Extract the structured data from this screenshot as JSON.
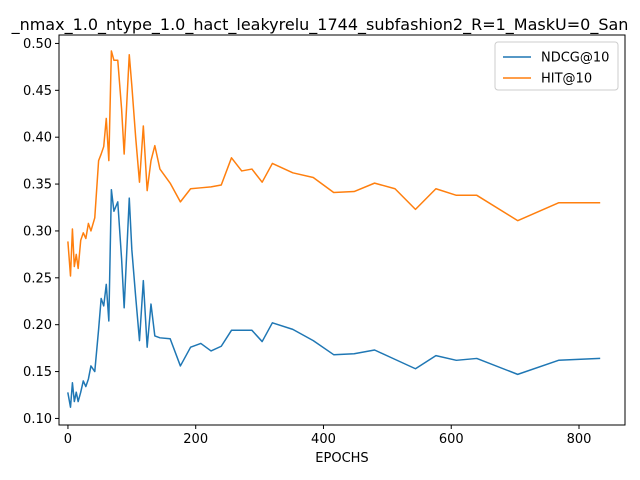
{
  "chart_data": {
    "type": "line",
    "title": "_nmax_1.0_ntype_1.0_hact_leakyrelu_1744_subfashion2_R=1_MaskU=0_San",
    "xlabel": "EPOCHS",
    "ylabel": "",
    "xlim": [
      -14,
      872
    ],
    "ylim": [
      0.093,
      0.509
    ],
    "xticks": [
      0,
      200,
      400,
      600,
      800
    ],
    "yticks": [
      0.1,
      0.15,
      0.2,
      0.25,
      0.3,
      0.35,
      0.4,
      0.45,
      0.5
    ],
    "xtick_labels": [
      "0",
      "200",
      "400",
      "600",
      "800"
    ],
    "ytick_labels": [
      "0.10",
      "0.15",
      "0.20",
      "0.25",
      "0.30",
      "0.35",
      "0.40",
      "0.45",
      "0.50"
    ],
    "grid": false,
    "legend_position": "top-right",
    "series": [
      {
        "name": "NDCG@10",
        "color": "#1f77b4",
        "x": [
          0,
          4,
          7,
          10,
          13,
          16,
          20,
          24,
          28,
          32,
          36,
          42,
          48,
          52,
          56,
          60,
          64,
          68,
          72,
          78,
          84,
          88,
          96,
          100,
          106,
          112,
          118,
          124,
          130,
          136,
          144,
          160,
          176,
          192,
          208,
          224,
          240,
          256,
          272,
          288,
          304,
          320,
          352,
          384,
          416,
          448,
          480,
          512,
          544,
          576,
          608,
          640,
          704,
          768,
          832
        ],
        "y": [
          0.127,
          0.112,
          0.138,
          0.118,
          0.128,
          0.118,
          0.128,
          0.14,
          0.134,
          0.142,
          0.156,
          0.15,
          0.195,
          0.228,
          0.22,
          0.243,
          0.204,
          0.344,
          0.321,
          0.331,
          0.27,
          0.218,
          0.335,
          0.28,
          0.23,
          0.183,
          0.247,
          0.176,
          0.222,
          0.188,
          0.186,
          0.185,
          0.156,
          0.176,
          0.18,
          0.172,
          0.177,
          0.194,
          0.194,
          0.194,
          0.182,
          0.202,
          0.195,
          0.183,
          0.168,
          0.169,
          0.173,
          0.163,
          0.153,
          0.167,
          0.162,
          0.164,
          0.147,
          0.162,
          0.164
        ]
      },
      {
        "name": "HIT@10",
        "color": "#ff7f0e",
        "x": [
          0,
          4,
          7,
          10,
          13,
          16,
          20,
          24,
          28,
          32,
          36,
          42,
          48,
          52,
          56,
          60,
          64,
          68,
          72,
          78,
          84,
          88,
          96,
          100,
          106,
          112,
          118,
          124,
          130,
          136,
          144,
          160,
          176,
          192,
          208,
          224,
          240,
          256,
          272,
          288,
          304,
          320,
          352,
          384,
          416,
          448,
          480,
          512,
          544,
          576,
          608,
          640,
          704,
          768,
          832
        ],
        "y": [
          0.288,
          0.252,
          0.302,
          0.262,
          0.275,
          0.26,
          0.29,
          0.298,
          0.292,
          0.308,
          0.3,
          0.314,
          0.375,
          0.382,
          0.39,
          0.42,
          0.375,
          0.492,
          0.482,
          0.482,
          0.43,
          0.382,
          0.488,
          0.455,
          0.4,
          0.352,
          0.412,
          0.343,
          0.375,
          0.391,
          0.366,
          0.351,
          0.331,
          0.345,
          0.346,
          0.347,
          0.349,
          0.378,
          0.364,
          0.366,
          0.352,
          0.372,
          0.362,
          0.357,
          0.341,
          0.342,
          0.351,
          0.345,
          0.323,
          0.345,
          0.338,
          0.338,
          0.311,
          0.33,
          0.33
        ]
      }
    ]
  }
}
